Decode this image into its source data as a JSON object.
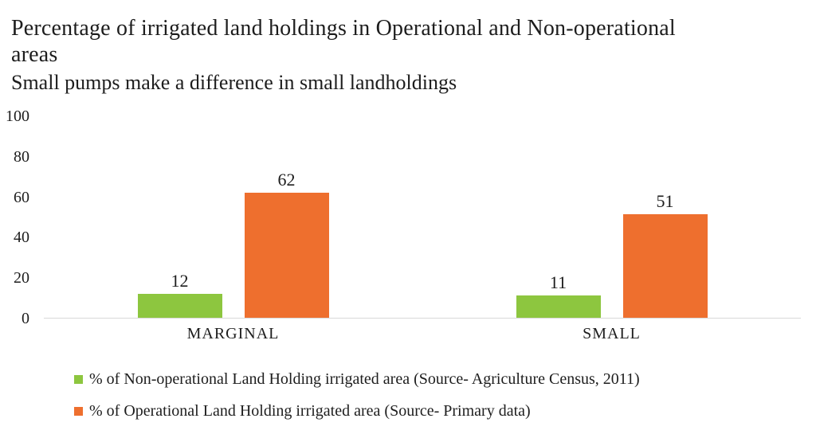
{
  "header": {
    "title": "Percentage of irrigated land holdings in Operational and Non-operational\nareas",
    "subtitle": "Small pumps make a difference in small landholdings"
  },
  "chart_data": {
    "type": "bar",
    "title": "Percentage of irrigated land holdings in Operational and Non-operational areas",
    "subtitle": "Small pumps make a difference in small landholdings",
    "categories": [
      "MARGINAL",
      "SMALL"
    ],
    "series": [
      {
        "name": "% of Non-operational Land Holding irrigated area (Source- Agriculture Census, 2011)",
        "color": "#8dc63f",
        "values": [
          12,
          11
        ]
      },
      {
        "name": "% of Operational Land Holding irrigated area (Source- Primary data)",
        "color": "#ee6f2e",
        "values": [
          62,
          51
        ]
      }
    ],
    "ylim": [
      0,
      100
    ],
    "yticks": [
      0,
      20,
      40,
      60,
      80,
      100
    ],
    "grid": false,
    "bar_value_labels": true,
    "legend_position": "bottom-left"
  },
  "colors": {
    "text": "#1d1d1d",
    "axis_line": "#d8d8d8",
    "background": "#ffffff"
  }
}
